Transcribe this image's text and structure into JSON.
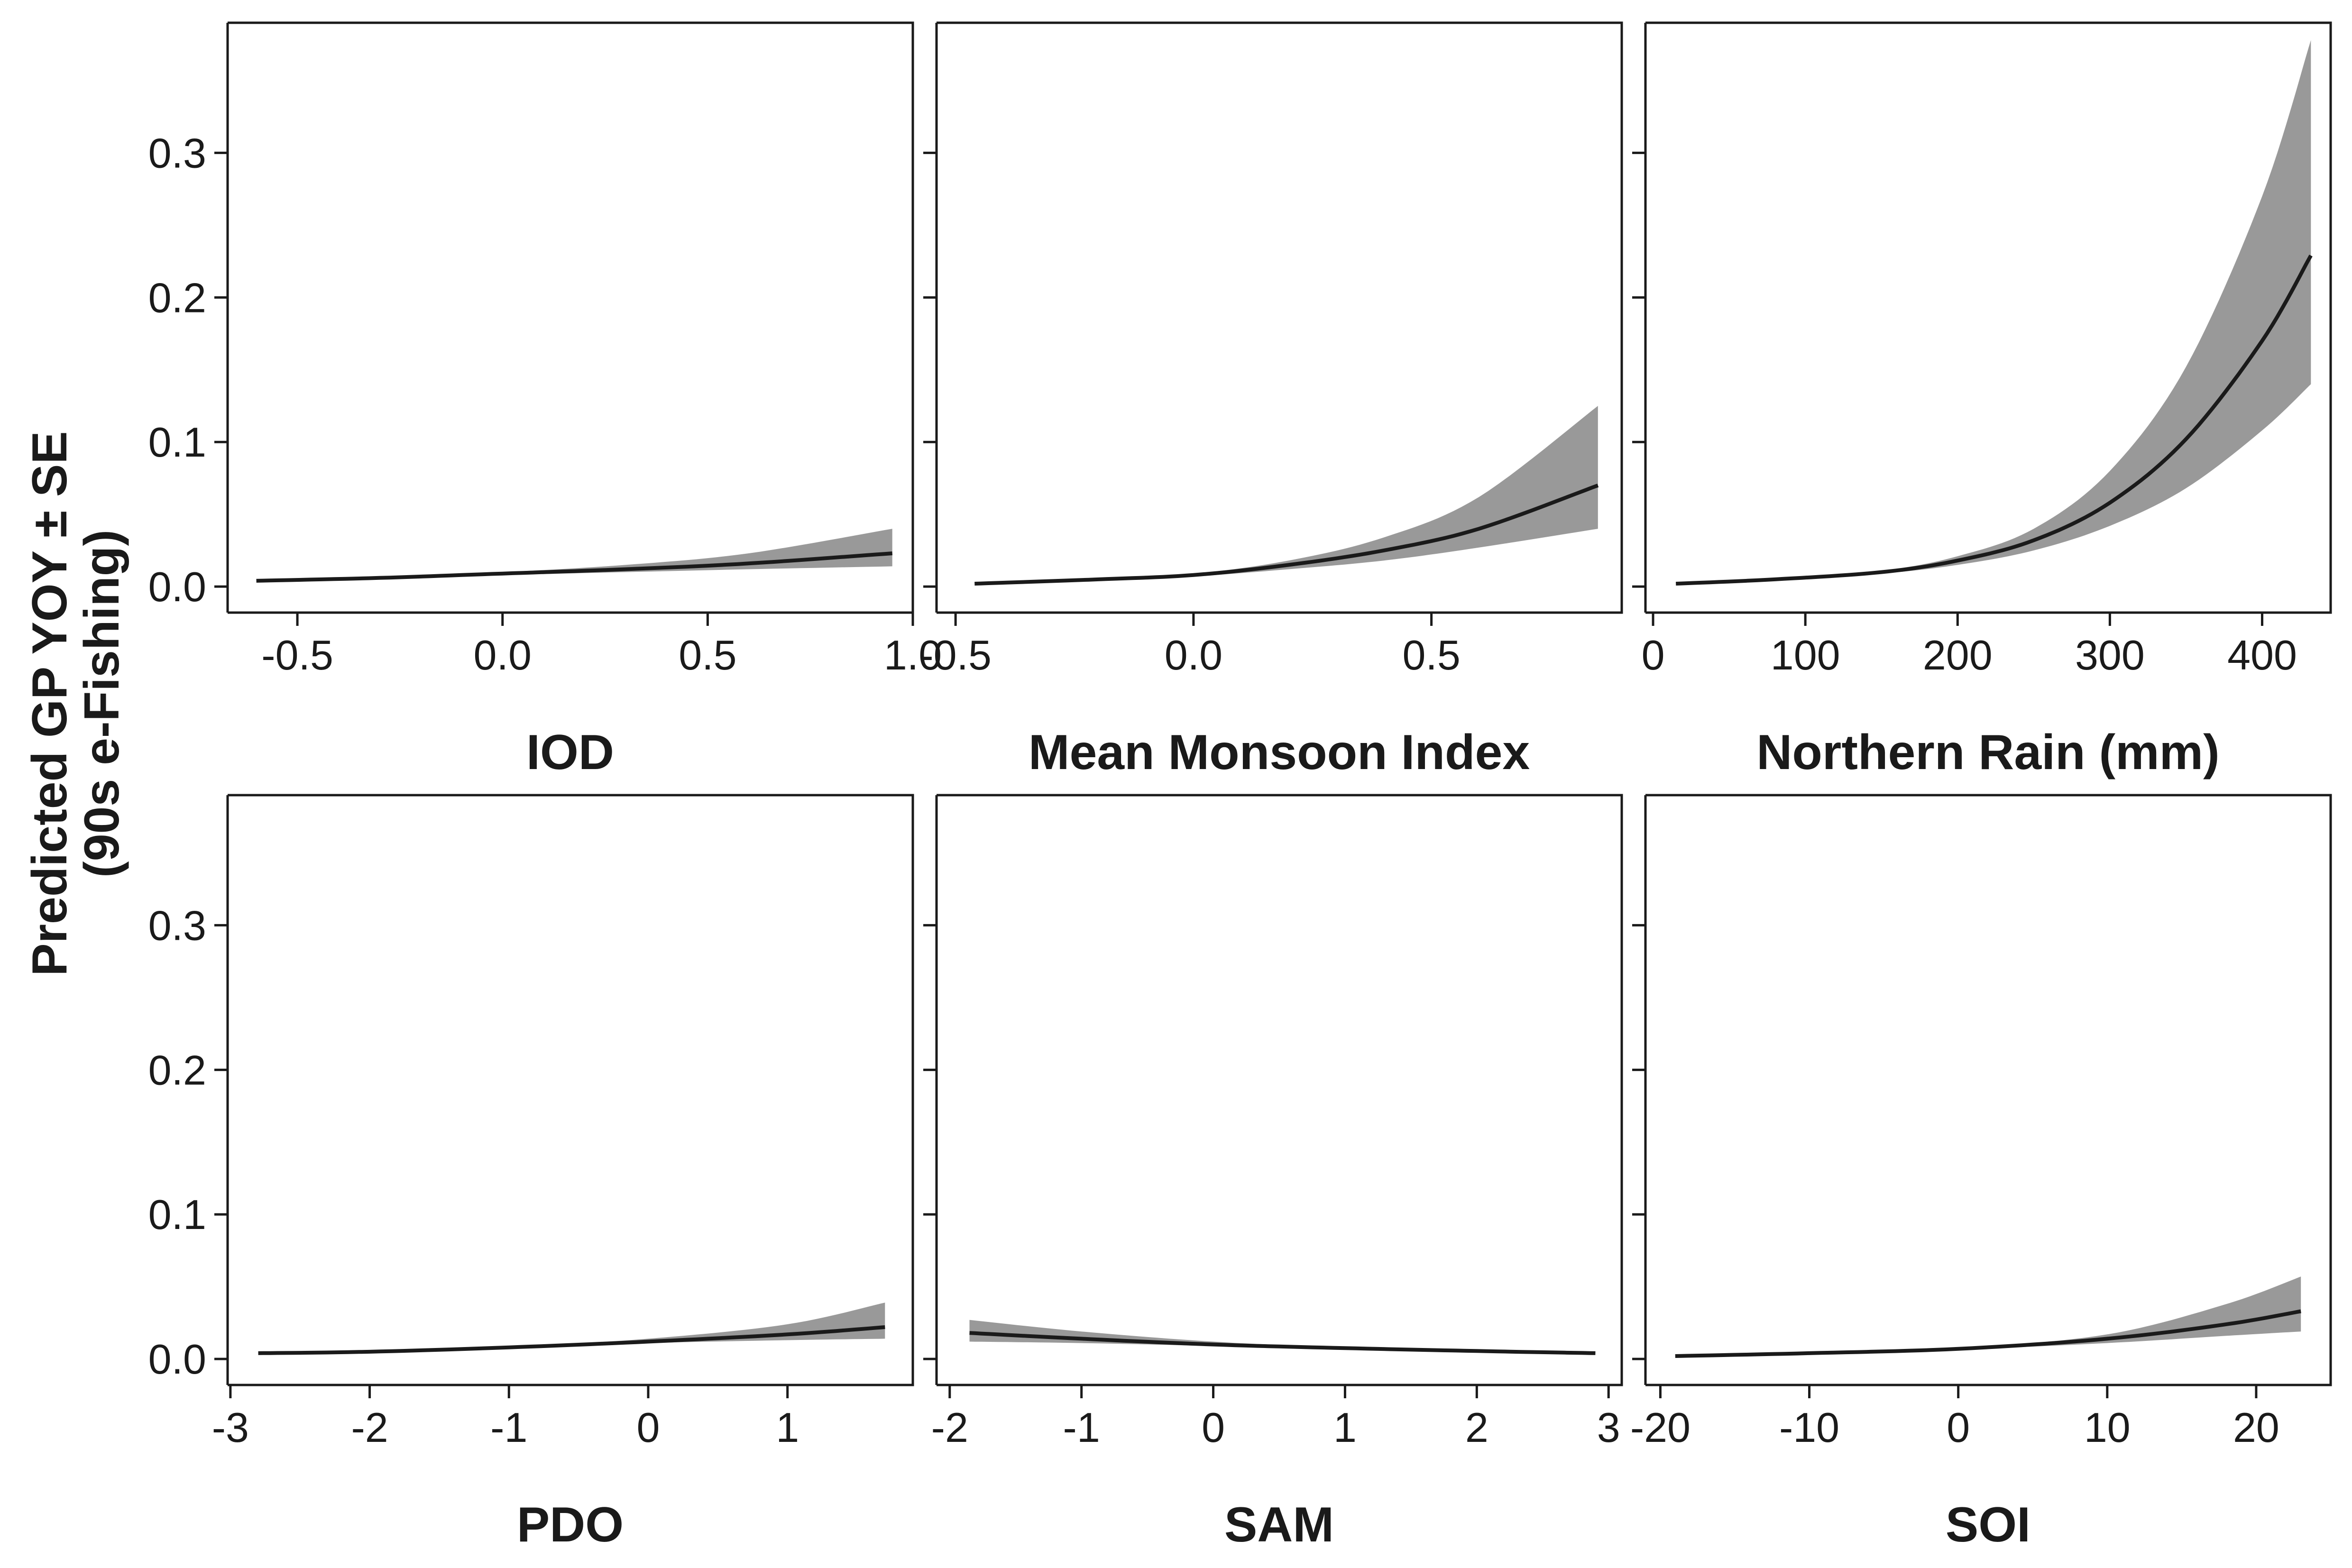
{
  "chart_data": {
    "type": "line",
    "ylabel": "Predicted GP YOY ± SE\n(90s e-Fishing)",
    "ylim": [
      -0.018,
      0.39
    ],
    "y_ticks": [
      0.0,
      0.1,
      0.2,
      0.3
    ],
    "y_tick_labels": [
      "0.0",
      "0.1",
      "0.2",
      "0.3"
    ],
    "fill_color": "#999999",
    "line_color": "#1a1a1a",
    "panels": [
      {
        "id": "iod",
        "xlabel": "IOD",
        "xlim": [
          -0.67,
          1.0
        ],
        "x_ticks": [
          -0.5,
          0.0,
          0.5,
          1.0
        ],
        "x_tick_labels": [
          "-0.5",
          "0.0",
          "0.5",
          "1.0"
        ],
        "x": [
          -0.6,
          -0.3,
          0.0,
          0.3,
          0.6,
          0.95
        ],
        "y": [
          0.004,
          0.006,
          0.009,
          0.012,
          0.016,
          0.023
        ],
        "lower": [
          0.004,
          0.0055,
          0.008,
          0.01,
          0.012,
          0.014
        ],
        "upper": [
          0.004,
          0.0065,
          0.01,
          0.015,
          0.023,
          0.04
        ]
      },
      {
        "id": "monsoon",
        "xlabel": "Mean Monsoon Index",
        "xlim": [
          -0.54,
          0.9
        ],
        "x_ticks": [
          -0.5,
          0.0,
          0.5
        ],
        "x_tick_labels": [
          "-0.5",
          "0.0",
          "0.5"
        ],
        "x": [
          -0.46,
          -0.2,
          0.0,
          0.2,
          0.4,
          0.6,
          0.85
        ],
        "y": [
          0.002,
          0.005,
          0.008,
          0.015,
          0.025,
          0.04,
          0.07
        ],
        "lower": [
          0.002,
          0.004,
          0.007,
          0.012,
          0.018,
          0.027,
          0.04
        ],
        "upper": [
          0.002,
          0.006,
          0.009,
          0.018,
          0.034,
          0.062,
          0.125
        ]
      },
      {
        "id": "rain",
        "xlabel": "Northern Rain (mm)",
        "xlim": [
          -5,
          445
        ],
        "x_ticks": [
          0,
          100,
          200,
          300,
          400
        ],
        "x_tick_labels": [
          "0",
          "100",
          "200",
          "300",
          "400"
        ],
        "x": [
          15,
          80,
          150,
          200,
          250,
          300,
          350,
          400,
          432
        ],
        "y": [
          0.002,
          0.005,
          0.01,
          0.018,
          0.032,
          0.058,
          0.102,
          0.17,
          0.229
        ],
        "lower": [
          0.002,
          0.0045,
          0.009,
          0.015,
          0.025,
          0.042,
          0.068,
          0.108,
          0.14
        ],
        "upper": [
          0.002,
          0.0055,
          0.011,
          0.021,
          0.04,
          0.08,
          0.152,
          0.27,
          0.378
        ]
      },
      {
        "id": "pdo",
        "xlabel": "PDO",
        "xlim": [
          -3.02,
          1.9
        ],
        "x_ticks": [
          -3,
          -2,
          -1,
          0,
          1
        ],
        "x_tick_labels": [
          "-3",
          "-2",
          "-1",
          "0",
          "1"
        ],
        "x": [
          -2.8,
          -2.0,
          -1.0,
          0.0,
          1.0,
          1.7
        ],
        "y": [
          0.004,
          0.005,
          0.008,
          0.012,
          0.017,
          0.022
        ],
        "lower": [
          0.004,
          0.0048,
          0.0075,
          0.011,
          0.013,
          0.014
        ],
        "upper": [
          0.004,
          0.0052,
          0.0085,
          0.014,
          0.024,
          0.039
        ]
      },
      {
        "id": "sam",
        "xlabel": "SAM",
        "xlim": [
          -2.1,
          3.1
        ],
        "x_ticks": [
          -2,
          -1,
          0,
          1,
          2,
          3
        ],
        "x_tick_labels": [
          "-2",
          "-1",
          "0",
          "1",
          "2",
          "3"
        ],
        "x": [
          -1.85,
          -1.0,
          0.0,
          1.0,
          2.0,
          2.9
        ],
        "y": [
          0.018,
          0.014,
          0.01,
          0.0075,
          0.0055,
          0.004
        ],
        "lower": [
          0.012,
          0.011,
          0.009,
          0.007,
          0.005,
          0.0035
        ],
        "upper": [
          0.027,
          0.019,
          0.012,
          0.008,
          0.006,
          0.0045
        ]
      },
      {
        "id": "soi",
        "xlabel": "SOI",
        "xlim": [
          -21,
          25
        ],
        "x_ticks": [
          -20,
          -10,
          0,
          10,
          20
        ],
        "x_tick_labels": [
          "-20",
          "-10",
          "0",
          "10",
          "20"
        ],
        "x": [
          -19,
          -10,
          0,
          10,
          18,
          23
        ],
        "y": [
          0.002,
          0.004,
          0.007,
          0.014,
          0.024,
          0.033
        ],
        "lower": [
          0.002,
          0.0038,
          0.0065,
          0.011,
          0.016,
          0.019
        ],
        "upper": [
          0.002,
          0.0042,
          0.0075,
          0.017,
          0.038,
          0.057
        ]
      }
    ]
  }
}
